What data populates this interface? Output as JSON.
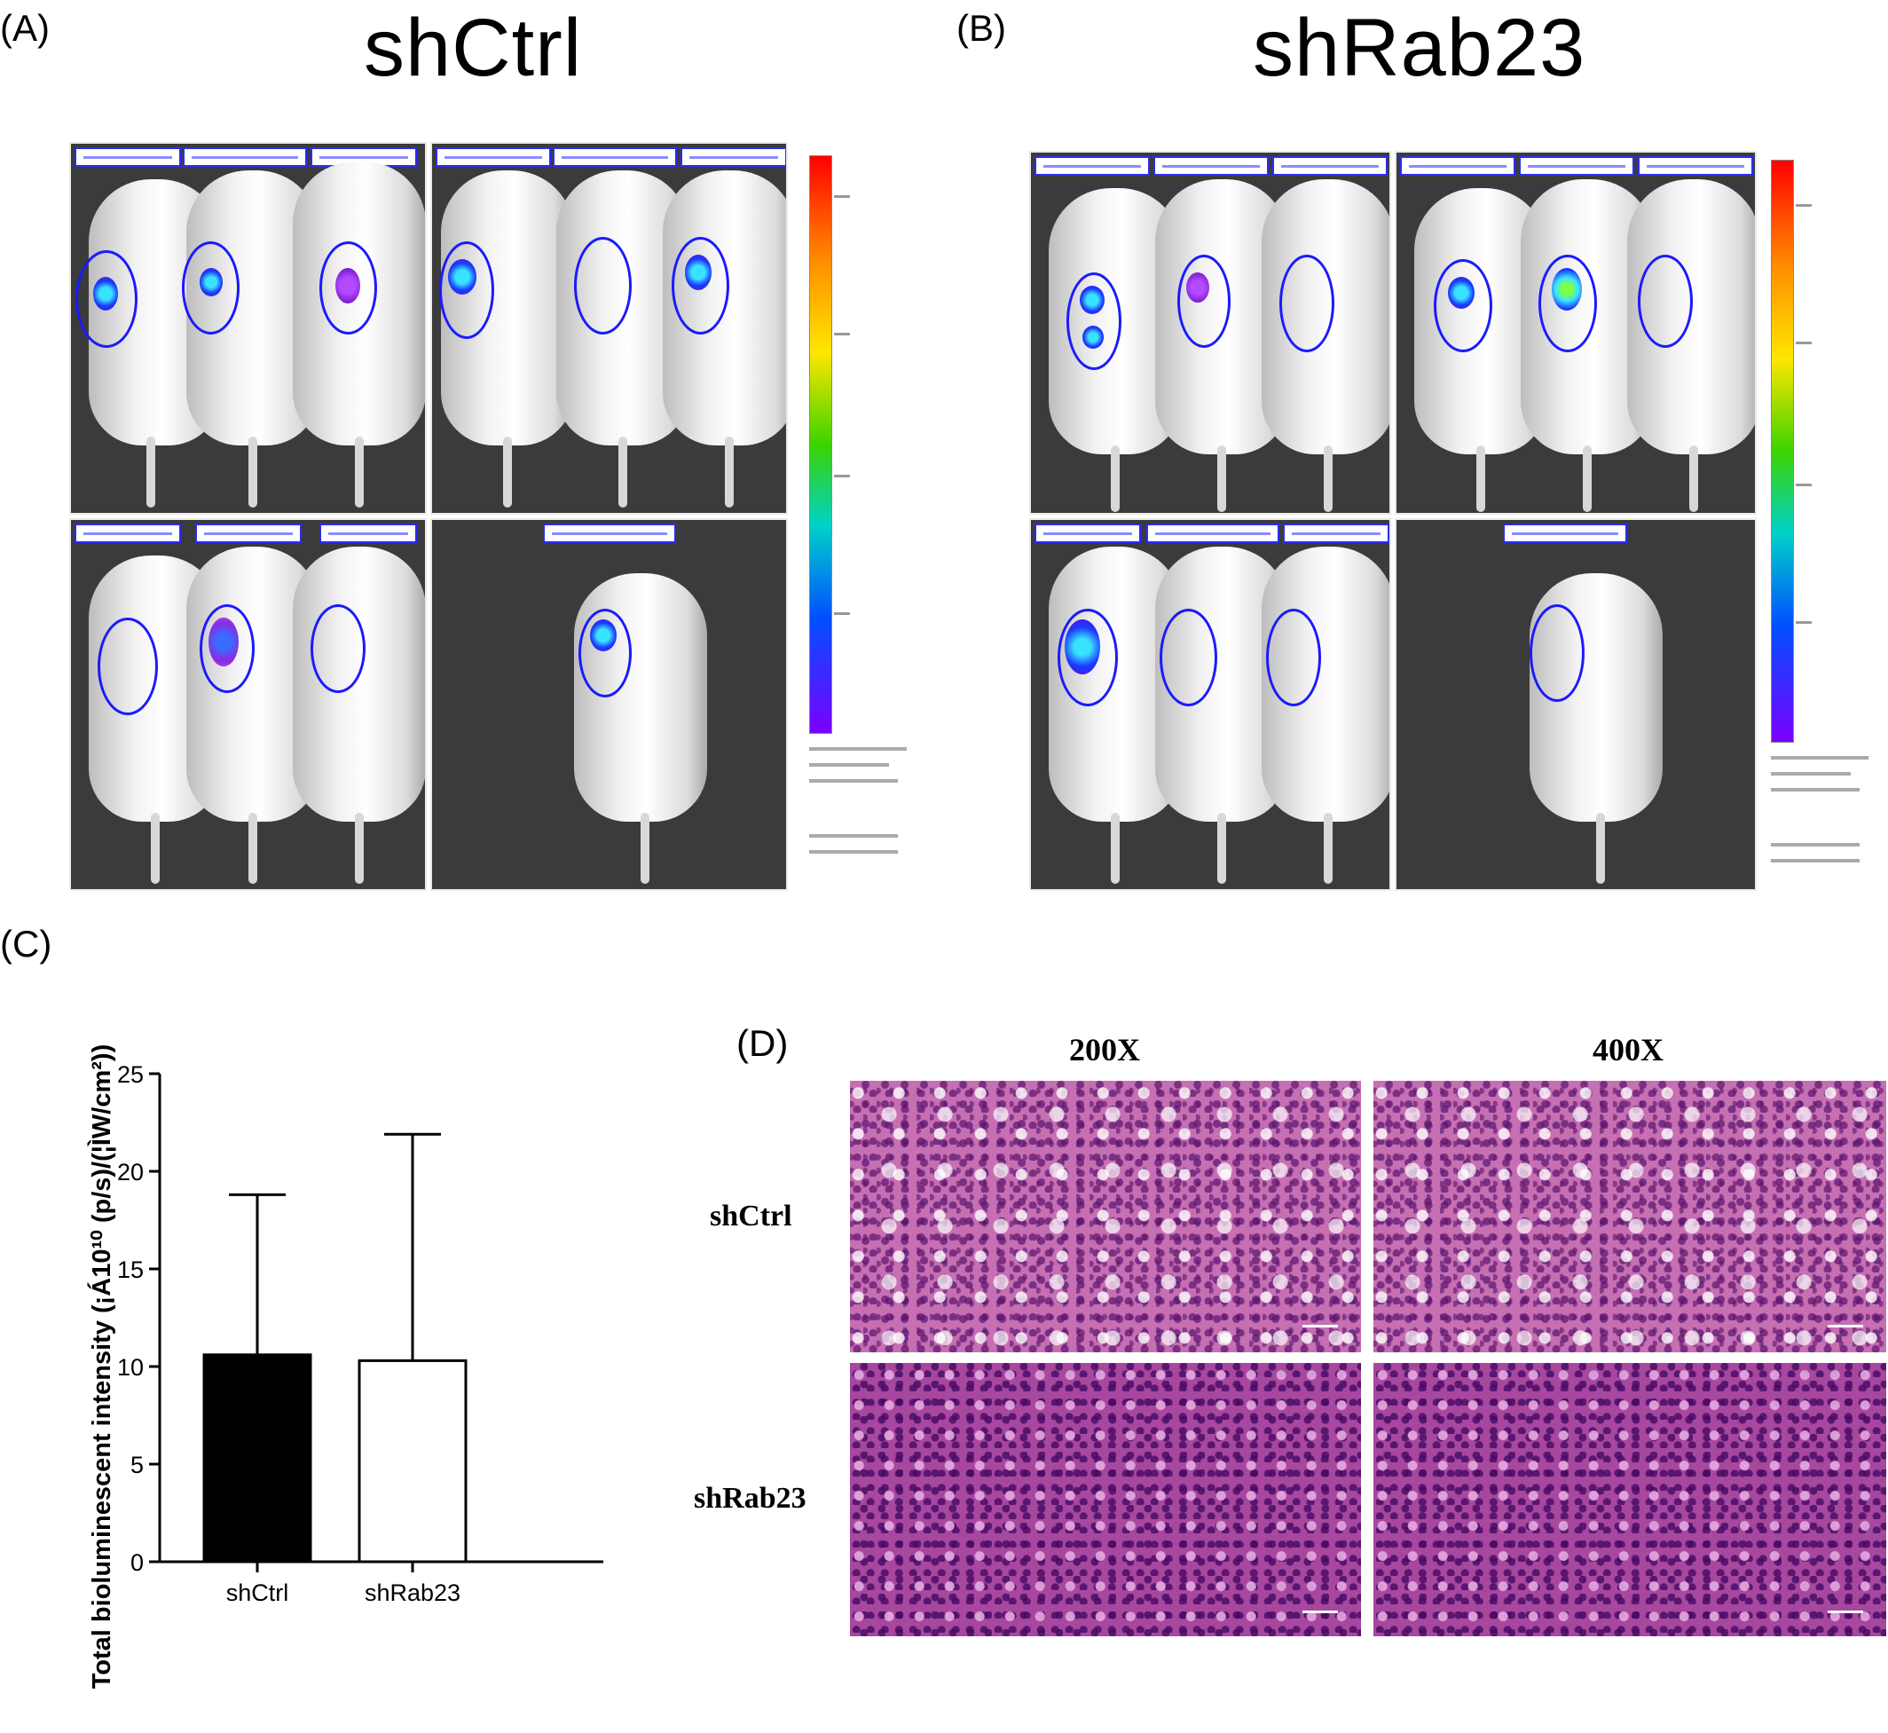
{
  "panels": {
    "a": {
      "letter": "(A)",
      "title": "shCtrl"
    },
    "b": {
      "letter": "(B)",
      "title": "shRab23"
    },
    "c": {
      "letter": "(C)"
    },
    "d": {
      "letter": "(D)"
    }
  },
  "chart_data": {
    "type": "bar",
    "categories": [
      "shCtrl",
      "shRab23"
    ],
    "values": [
      10.6,
      10.3
    ],
    "error_upper": [
      18.8,
      21.9
    ],
    "bar_fill": [
      "#000000",
      "#ffffff"
    ],
    "ylabel": "Total bioluminescent intensity (¡Á10¹⁰ (p/s)/(¦ÌW/cm²))",
    "yticks": [
      0,
      5,
      10,
      15,
      20,
      25
    ],
    "ylim": [
      0,
      25
    ],
    "grid": false
  },
  "histology": {
    "col_labels": [
      "200X",
      "400X"
    ],
    "row_labels": [
      "shCtrl",
      "shRab23"
    ]
  }
}
